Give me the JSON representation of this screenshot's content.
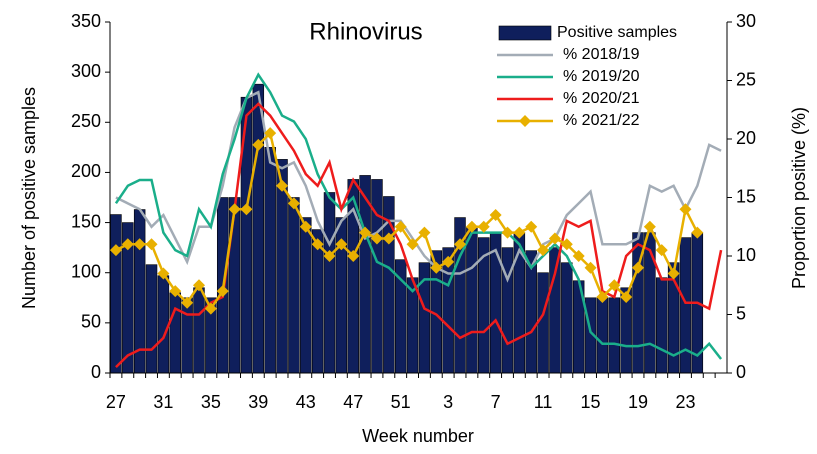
{
  "chart_data": {
    "type": "bar",
    "title": "Rhinovirus",
    "x_label": "Week number",
    "y_label": "Number of positive samples",
    "y2_label": "Proportion positive (%)",
    "categories": [
      "27",
      null,
      null,
      null,
      "31",
      null,
      null,
      null,
      "35",
      null,
      null,
      null,
      "39",
      null,
      null,
      null,
      "43",
      null,
      null,
      null,
      "47",
      null,
      null,
      null,
      "51",
      null,
      null,
      null,
      "3",
      null,
      null,
      null,
      "7",
      null,
      null,
      null,
      "11",
      null,
      null,
      null,
      "15",
      null,
      null,
      null,
      "19",
      null,
      null,
      null,
      "23",
      null,
      null,
      null
    ],
    "ylim": [
      0,
      350
    ],
    "yticks": [
      0,
      50,
      100,
      150,
      200,
      250,
      300,
      350
    ],
    "y2lim": [
      0,
      30
    ],
    "y2ticks": [
      0,
      5,
      10,
      15,
      20,
      25,
      30
    ],
    "series": [
      {
        "name": "Positive samples",
        "kind": "bar",
        "color": "#0f1f5c",
        "values": [
          158,
          150,
          163,
          108,
          97,
          80,
          75,
          85,
          75,
          175,
          175,
          275,
          288,
          225,
          213,
          175,
          155,
          143,
          180,
          155,
          193,
          197,
          193,
          176,
          113,
          95,
          110,
          122,
          125,
          155,
          145,
          135,
          140,
          125,
          140,
          122,
          100,
          125,
          110,
          92,
          75,
          75,
          75,
          85,
          140,
          140,
          95,
          110,
          135,
          140,
          null,
          null
        ]
      },
      {
        "name": "% 2018/19",
        "kind": "line",
        "axis": "y2",
        "color": "#a3acb6",
        "markers": false,
        "values": [
          15,
          14.5,
          14,
          12.5,
          13.5,
          11.5,
          9.5,
          12.5,
          12.5,
          16,
          21,
          23.5,
          24,
          18,
          17.5,
          18,
          16,
          13,
          11,
          13,
          14,
          11.5,
          12,
          13,
          13,
          11.5,
          10,
          9,
          8.5,
          8.5,
          9,
          10,
          10.5,
          8,
          10.5,
          9,
          11,
          11.5,
          13.5,
          14.5,
          15.5,
          11,
          11,
          11,
          11.5,
          16,
          15.5,
          16,
          14,
          16,
          19.5,
          19
        ]
      },
      {
        "name": "% 2019/20",
        "kind": "line",
        "axis": "y2",
        "color": "#1aae8a",
        "markers": false,
        "values": [
          14.5,
          16,
          16.5,
          16.5,
          12,
          10.5,
          10,
          14,
          12.5,
          17,
          20,
          23.5,
          25.5,
          24,
          22,
          21.5,
          20,
          17,
          15,
          14,
          15,
          12,
          9.5,
          9,
          8,
          7,
          8,
          8,
          7.5,
          10,
          12,
          12,
          12,
          12,
          11,
          9,
          10,
          11,
          10,
          8,
          3.5,
          2.5,
          2.5,
          2.3,
          2.3,
          2.5,
          2,
          1.5,
          2,
          1.5,
          2.5,
          1.2
        ]
      },
      {
        "name": "% 2020/21",
        "kind": "line",
        "axis": "y2",
        "color": "#ee1c1c",
        "markers": false,
        "values": [
          0.5,
          1.5,
          2,
          2,
          3,
          5.5,
          5,
          5,
          6,
          6.5,
          14,
          22,
          23,
          22,
          20.5,
          19,
          17,
          16,
          18,
          14,
          16.5,
          15,
          13.5,
          13,
          11,
          8,
          5.5,
          5,
          4,
          3,
          3.5,
          3.5,
          4.5,
          2.5,
          3,
          3.5,
          5,
          8.5,
          13,
          12.5,
          13,
          7,
          6.5,
          10,
          11,
          10.5,
          8,
          8,
          6,
          6,
          5.5,
          10.5
        ]
      },
      {
        "name": "% 2021/22",
        "kind": "line",
        "axis": "y2",
        "color": "#e8b000",
        "markers": true,
        "values": [
          10.5,
          11,
          11,
          11,
          8.5,
          7,
          6,
          7.5,
          5.5,
          7,
          14,
          14,
          19.5,
          20.5,
          16,
          14.5,
          12.5,
          11,
          10,
          11,
          10,
          12,
          11.5,
          11.5,
          12.5,
          11,
          12,
          9,
          9.5,
          11,
          12.5,
          12.5,
          13.5,
          12,
          12,
          12.5,
          10.5,
          11.5,
          11,
          10,
          9,
          6.5,
          7.5,
          6.5,
          9,
          12.5,
          10.5,
          8.5,
          14,
          12,
          null,
          null
        ]
      }
    ]
  }
}
